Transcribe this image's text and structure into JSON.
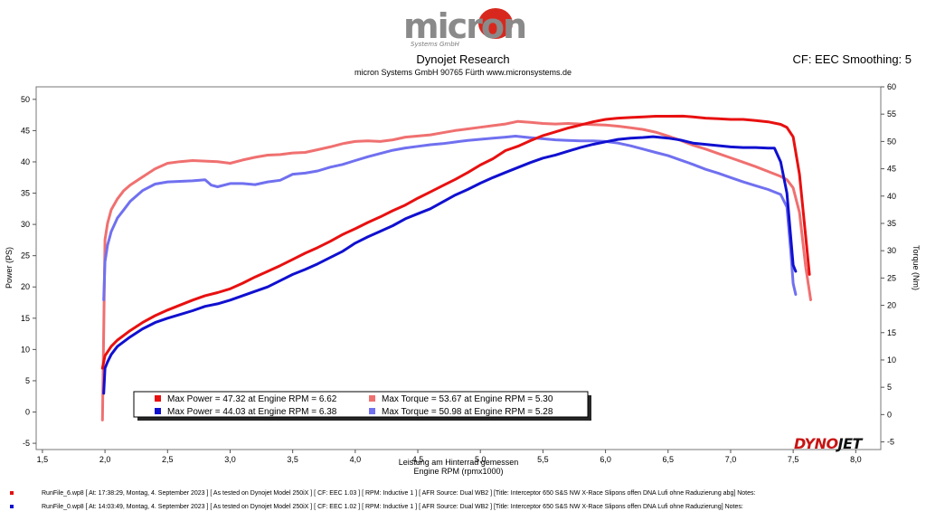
{
  "header": {
    "title": "Dynojet Research",
    "subtitle": "micron Systems GmbH  90765 Fürth www.micronsystems.de",
    "cf_text": "CF: EEC Smoothing: 5",
    "logo_text": "micron",
    "logo_sub": "Systems GmbH"
  },
  "brand": {
    "a": "DYNO",
    "b": "JET"
  },
  "footer": {
    "runs": [
      {
        "color": "#e01010",
        "text": "RunFile_6.wp8  [  At:  17:38:29,  Montag,  4.  September  2023  ]  [  As  tested  on  Dynojet  Model  250iX  ]  [  CF:  EEC  1.03  ]  [  RPM:  Inductive  1  ]  [  AFR  Source:  Dual  WB2  ]  [Title:  Interceptor  650  S&S  NW  X-Race  Slipons  offen  DNA  Lufi  ohne  Raduzierung  abg]    Notes:"
      },
      {
        "color": "#1010d0",
        "text": "RunFile_0.wp8  [  At:  14:03:49,  Montag,  4.  September  2023  ]  [  As  tested  on  Dynojet  Model  250iX  ]  [  CF:  EEC  1.02  ]  [  RPM:  Inductive  1  ]  [  AFR  Source:  Dual  WB2  ]  [Title:  Interceptor  650  S&S  NW  X-Race  Slipons  offen  DNA  Lufi  ohne  Raduzierung]    Notes:"
      }
    ]
  },
  "chart_data": {
    "type": "line",
    "title": "Dynojet Research",
    "xlabel": "Engine RPM (rpmx1000)",
    "xlabel_top": "Leistung am Hinterrad gemessen",
    "ylabel": "Power (PS)",
    "y2label": "Torque (Nm)",
    "xlim": [
      1.45,
      8.2
    ],
    "ylim": [
      -6,
      52
    ],
    "y2lim": [
      -6.4,
      60
    ],
    "xticks": [
      1.5,
      2.0,
      2.5,
      3.0,
      3.5,
      4.0,
      4.5,
      5.0,
      5.5,
      6.0,
      6.5,
      7.0,
      7.5,
      8.0
    ],
    "xtick_labels": [
      "1,5",
      "2,0",
      "2,5",
      "3,0",
      "3,5",
      "4,0",
      "4,5",
      "5,0",
      "5,5",
      "6,0",
      "6,5",
      "7,0",
      "7,5",
      "8,0"
    ],
    "yticks": [
      -5,
      0,
      5,
      10,
      15,
      20,
      25,
      30,
      35,
      40,
      45,
      50
    ],
    "y2ticks": [
      -5,
      0,
      5,
      10,
      15,
      20,
      25,
      30,
      35,
      40,
      45,
      50,
      55,
      60
    ],
    "grid": false,
    "legend_position": "bottom-left",
    "series": [
      {
        "name": "Max Power = 47.32 at Engine RPM = 6.62",
        "axis": "left",
        "color": "#e81010",
        "width": 3,
        "x": [
          1.98,
          2.0,
          2.05,
          2.1,
          2.2,
          2.3,
          2.4,
          2.5,
          2.6,
          2.7,
          2.8,
          2.9,
          3.0,
          3.1,
          3.2,
          3.3,
          3.4,
          3.5,
          3.6,
          3.7,
          3.8,
          3.9,
          4.0,
          4.1,
          4.2,
          4.3,
          4.4,
          4.5,
          4.6,
          4.7,
          4.8,
          4.9,
          5.0,
          5.1,
          5.2,
          5.3,
          5.4,
          5.5,
          5.6,
          5.7,
          5.8,
          5.9,
          6.0,
          6.1,
          6.2,
          6.3,
          6.4,
          6.5,
          6.62,
          6.7,
          6.8,
          6.9,
          7.0,
          7.1,
          7.2,
          7.3,
          7.4,
          7.45,
          7.5,
          7.55,
          7.6,
          7.63
        ],
        "y": [
          7,
          9,
          10.5,
          11.5,
          13,
          14.3,
          15.4,
          16.3,
          17.1,
          17.9,
          18.6,
          19.1,
          19.7,
          20.6,
          21.6,
          22.5,
          23.4,
          24.4,
          25.4,
          26.3,
          27.3,
          28.4,
          29.3,
          30.3,
          31.2,
          32.2,
          33.1,
          34.2,
          35.2,
          36.2,
          37.2,
          38.3,
          39.5,
          40.5,
          41.8,
          42.5,
          43.4,
          44.2,
          44.8,
          45.4,
          45.9,
          46.4,
          46.8,
          47.0,
          47.1,
          47.2,
          47.3,
          47.3,
          47.32,
          47.2,
          47.0,
          46.9,
          46.8,
          46.8,
          46.6,
          46.4,
          46.0,
          45.5,
          44.0,
          38.0,
          28.0,
          22.0
        ]
      },
      {
        "name": "Max Power = 44.03 at Engine RPM = 6.38",
        "axis": "left",
        "color": "#1010d0",
        "width": 3,
        "x": [
          1.99,
          2.0,
          2.02,
          2.05,
          2.1,
          2.2,
          2.3,
          2.4,
          2.5,
          2.6,
          2.7,
          2.8,
          2.9,
          3.0,
          3.1,
          3.2,
          3.3,
          3.4,
          3.5,
          3.6,
          3.7,
          3.8,
          3.9,
          4.0,
          4.1,
          4.2,
          4.3,
          4.4,
          4.5,
          4.6,
          4.7,
          4.8,
          4.9,
          5.0,
          5.1,
          5.2,
          5.3,
          5.4,
          5.5,
          5.6,
          5.7,
          5.8,
          5.9,
          6.0,
          6.1,
          6.2,
          6.3,
          6.38,
          6.5,
          6.6,
          6.7,
          6.8,
          6.9,
          7.0,
          7.1,
          7.2,
          7.3,
          7.35,
          7.4,
          7.45,
          7.48,
          7.5,
          7.52
        ],
        "y": [
          3,
          7,
          8,
          9.2,
          10.5,
          12,
          13.3,
          14.3,
          15.0,
          15.6,
          16.2,
          16.9,
          17.3,
          17.9,
          18.6,
          19.3,
          20.0,
          21.0,
          22.0,
          22.8,
          23.7,
          24.7,
          25.7,
          27.0,
          28.0,
          28.9,
          29.8,
          30.9,
          31.7,
          32.5,
          33.6,
          34.7,
          35.6,
          36.6,
          37.5,
          38.3,
          39.1,
          39.9,
          40.6,
          41.1,
          41.7,
          42.3,
          42.8,
          43.2,
          43.6,
          43.8,
          43.9,
          44.03,
          43.8,
          43.5,
          43.0,
          42.8,
          42.6,
          42.4,
          42.3,
          42.3,
          42.2,
          42.2,
          40.0,
          35.0,
          28.0,
          23.5,
          22.5
        ]
      },
      {
        "name": "Max Torque = 53.67 at Engine RPM = 5.30",
        "axis": "right",
        "color": "#f07070",
        "width": 3,
        "x": [
          1.98,
          2.0,
          2.02,
          2.05,
          2.1,
          2.15,
          2.2,
          2.3,
          2.4,
          2.5,
          2.6,
          2.7,
          2.8,
          2.9,
          3.0,
          3.1,
          3.2,
          3.3,
          3.4,
          3.5,
          3.6,
          3.7,
          3.8,
          3.9,
          4.0,
          4.1,
          4.2,
          4.3,
          4.4,
          4.5,
          4.6,
          4.7,
          4.8,
          4.9,
          5.0,
          5.1,
          5.2,
          5.3,
          5.4,
          5.5,
          5.6,
          5.7,
          5.8,
          5.9,
          6.0,
          6.1,
          6.2,
          6.3,
          6.4,
          6.5,
          6.6,
          6.7,
          6.8,
          6.9,
          7.0,
          7.1,
          7.2,
          7.3,
          7.4,
          7.45,
          7.5,
          7.55,
          7.6,
          7.64
        ],
        "y": [
          -1,
          32,
          35,
          37.5,
          39.5,
          41,
          42,
          43.5,
          45,
          46,
          46.3,
          46.5,
          46.4,
          46.3,
          46.0,
          46.6,
          47.1,
          47.5,
          47.6,
          47.9,
          48.0,
          48.5,
          49.0,
          49.6,
          50.0,
          50.1,
          50.0,
          50.3,
          50.8,
          51.0,
          51.2,
          51.6,
          52.0,
          52.3,
          52.6,
          52.9,
          53.2,
          53.67,
          53.5,
          53.3,
          53.2,
          53.3,
          53.2,
          53.1,
          53.0,
          52.8,
          52.5,
          52.2,
          51.7,
          51.0,
          50.2,
          49.3,
          48.6,
          47.8,
          47.0,
          46.2,
          45.4,
          44.5,
          43.6,
          43.0,
          41.5,
          37.0,
          27.0,
          21.0
        ]
      },
      {
        "name": "Max Torque = 50.98 at Engine RPM = 5.28",
        "axis": "right",
        "color": "#7070f0",
        "width": 3,
        "x": [
          1.99,
          2.0,
          2.02,
          2.05,
          2.1,
          2.15,
          2.2,
          2.3,
          2.4,
          2.5,
          2.6,
          2.7,
          2.8,
          2.85,
          2.9,
          3.0,
          3.1,
          3.2,
          3.3,
          3.4,
          3.5,
          3.6,
          3.7,
          3.8,
          3.9,
          4.0,
          4.1,
          4.2,
          4.3,
          4.4,
          4.5,
          4.6,
          4.7,
          4.8,
          4.9,
          5.0,
          5.1,
          5.2,
          5.28,
          5.4,
          5.5,
          5.6,
          5.7,
          5.8,
          5.9,
          6.0,
          6.1,
          6.2,
          6.3,
          6.4,
          6.5,
          6.6,
          6.7,
          6.8,
          6.9,
          7.0,
          7.1,
          7.2,
          7.3,
          7.4,
          7.45,
          7.48,
          7.5,
          7.52
        ],
        "y": [
          21,
          28,
          31,
          33.5,
          36,
          37.5,
          39,
          41,
          42.2,
          42.6,
          42.7,
          42.8,
          43,
          42.0,
          41.7,
          42.3,
          42.3,
          42.1,
          42.6,
          42.9,
          44.0,
          44.2,
          44.6,
          45.3,
          45.8,
          46.5,
          47.2,
          47.8,
          48.4,
          48.8,
          49.1,
          49.4,
          49.6,
          49.9,
          50.2,
          50.4,
          50.6,
          50.8,
          50.98,
          50.7,
          50.5,
          50.3,
          50.2,
          50.1,
          50.1,
          50.0,
          49.7,
          49.2,
          48.6,
          48.0,
          47.4,
          46.6,
          45.8,
          44.9,
          44.2,
          43.4,
          42.6,
          41.9,
          41.2,
          40.3,
          38.0,
          30.0,
          24.0,
          22.0
        ]
      }
    ]
  }
}
